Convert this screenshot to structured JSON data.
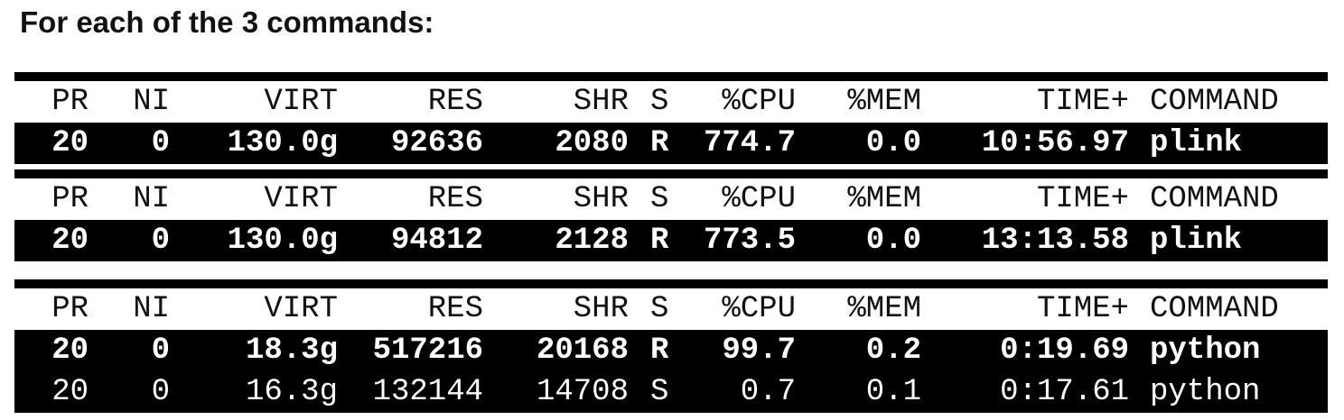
{
  "heading": "For each of the 3 commands:",
  "columns": [
    "PR",
    "NI",
    "VIRT",
    "RES",
    "SHR",
    "S",
    "%CPU",
    "%MEM",
    "TIME+",
    "COMMAND"
  ],
  "panels": [
    {
      "rows": [
        {
          "pr": "20",
          "ni": "0",
          "virt": "130.0g",
          "res": "92636",
          "shr": "2080",
          "s": "R",
          "cpu": "774.7",
          "mem": "0.0",
          "time": "10:56.97",
          "command": "plink"
        }
      ]
    },
    {
      "rows": [
        {
          "pr": "20",
          "ni": "0",
          "virt": "130.0g",
          "res": "94812",
          "shr": "2128",
          "s": "R",
          "cpu": "773.5",
          "mem": "0.0",
          "time": "13:13.58",
          "command": "plink"
        }
      ]
    },
    {
      "rows": [
        {
          "pr": "20",
          "ni": "0",
          "virt": "18.3g",
          "res": "517216",
          "shr": "20168",
          "s": "R",
          "cpu": "99.7",
          "mem": "0.2",
          "time": "0:19.69",
          "command": "python"
        },
        {
          "pr": "20",
          "ni": "0",
          "virt": "16.3g",
          "res": "132144",
          "shr": "14708",
          "s": "S",
          "cpu": "0.7",
          "mem": "0.1",
          "time": "0:17.61",
          "command": "python"
        }
      ]
    }
  ]
}
